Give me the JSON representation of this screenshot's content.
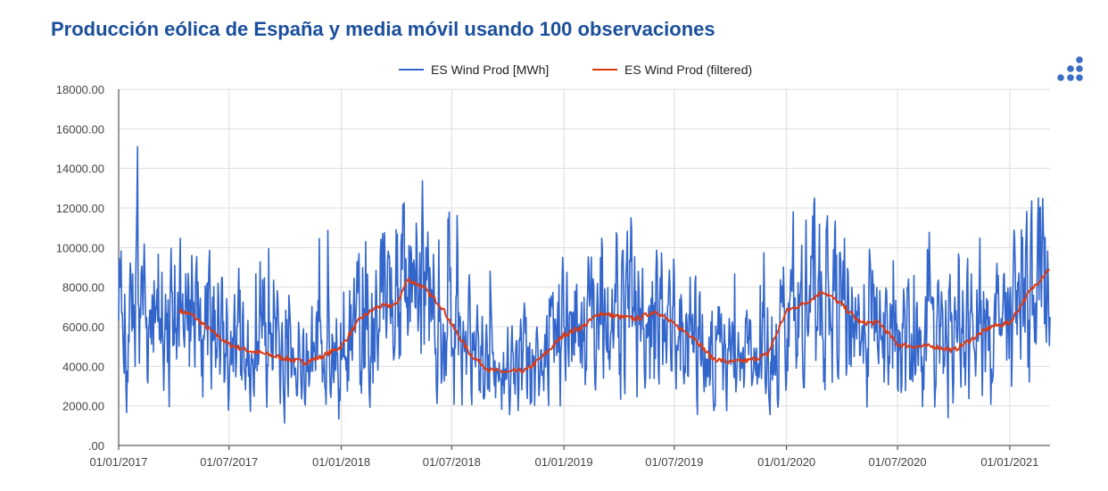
{
  "title": "Producción eólica de España y media móvil usando 100 observaciones",
  "menu": {
    "icon": "dots-menu-icon",
    "color": "#3a6fc4"
  },
  "chart_data": {
    "type": "line",
    "legend": {
      "placement": "top-center",
      "entries": [
        "ES Wind Prod [MWh]",
        "ES Wind Prod (filtered)"
      ]
    },
    "y_ticks": [
      ".00",
      "2000.00",
      "4000.00",
      "6000.00",
      "8000.00",
      "10000.00",
      "12000.00",
      "14000.00",
      "16000.00",
      "18000.00"
    ],
    "x_ticks": [
      "01/01/2017",
      "01/07/2017",
      "01/01/2018",
      "01/07/2018",
      "01/01/2019",
      "01/07/2019",
      "01/01/2020",
      "01/07/2020",
      "01/01/2021"
    ],
    "xlim": [
      "2017-01-01",
      "2021-03-08"
    ],
    "ylim": [
      0,
      18000
    ],
    "grid": true,
    "series": [
      {
        "name": "ES Wind Prod [MWh]",
        "color": "#3366cc",
        "x_start": "2017-01-01",
        "x_step_days": 1,
        "x_end": "2021-03-08",
        "envelope_note": "daily values oscillating between approx. 1000 and 17000"
      },
      {
        "name": "ES Wind Prod (filtered)",
        "color": "#dc3912",
        "x": [
          "2017-04-11",
          "2017-05-01",
          "2017-06-01",
          "2017-07-01",
          "2017-08-01",
          "2017-09-01",
          "2017-10-01",
          "2017-11-01",
          "2017-12-01",
          "2018-01-01",
          "2018-02-01",
          "2018-03-01",
          "2018-04-01",
          "2018-04-20",
          "2018-05-15",
          "2018-06-15",
          "2018-07-01",
          "2018-08-01",
          "2018-09-01",
          "2018-10-01",
          "2018-11-01",
          "2018-12-01",
          "2019-01-01",
          "2019-02-01",
          "2019-03-01",
          "2019-04-01",
          "2019-05-01",
          "2019-06-01",
          "2019-07-01",
          "2019-08-01",
          "2019-09-01",
          "2019-10-01",
          "2019-11-01",
          "2019-12-01",
          "2020-01-01",
          "2020-02-01",
          "2020-03-01",
          "2020-04-01",
          "2020-05-01",
          "2020-06-01",
          "2020-07-01",
          "2020-08-01",
          "2020-09-01",
          "2020-10-01",
          "2020-11-01",
          "2020-12-01",
          "2021-01-01",
          "2021-02-01",
          "2021-03-08"
        ],
        "y": [
          6800,
          6600,
          5800,
          5100,
          4800,
          4600,
          4400,
          4200,
          4500,
          5000,
          6400,
          7000,
          7100,
          8400,
          8000,
          7000,
          6100,
          4600,
          3800,
          3700,
          3800,
          4600,
          5600,
          6000,
          6700,
          6500,
          6400,
          6800,
          6100,
          5500,
          4400,
          4200,
          4300,
          4600,
          6800,
          7200,
          7800,
          7100,
          6200,
          6200,
          5100,
          5000,
          5000,
          4800,
          5400,
          6000,
          6200,
          7700,
          9000
        ]
      }
    ]
  }
}
